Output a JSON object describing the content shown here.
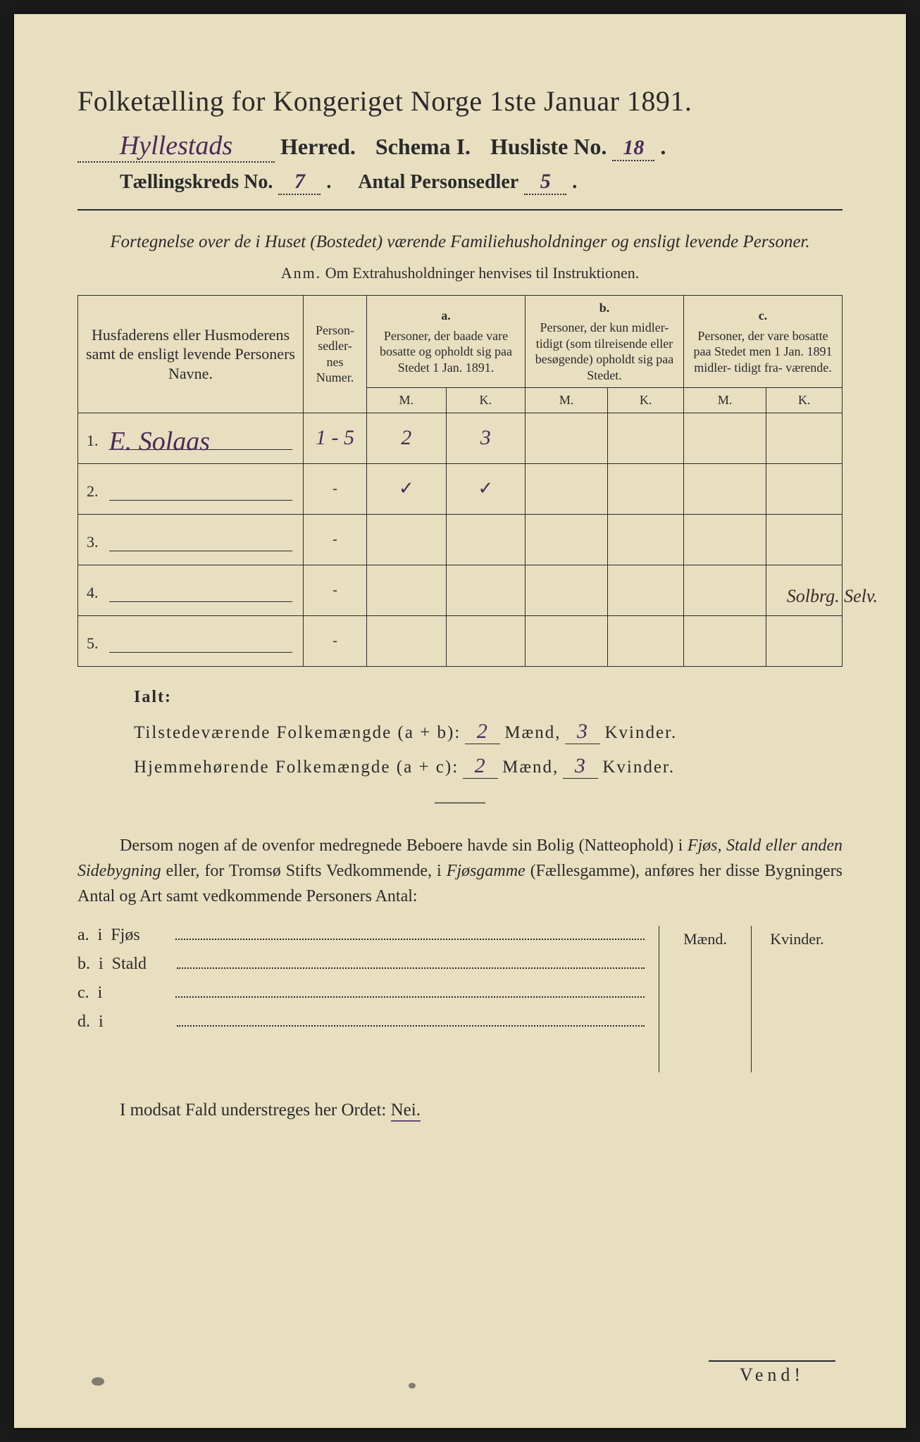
{
  "header": {
    "title": "Folketælling for Kongeriget Norge 1ste Januar 1891.",
    "herred_value": "Hyllestads",
    "herred_label": "Herred.",
    "schema_label": "Schema I.",
    "husliste_label": "Husliste No.",
    "husliste_value": "18",
    "kreds_label": "Tællingskreds No.",
    "kreds_value": "7",
    "personsedler_label": "Antal Personsedler",
    "personsedler_value": "5"
  },
  "description": {
    "main": "Fortegnelse over de i Huset (Bostedet) værende Familiehusholdninger og ensligt levende Personer.",
    "anm_lead": "Anm.",
    "anm_text": "Om Extrahusholdninger henvises til Instruktionen."
  },
  "table": {
    "col_name": "Husfaderens eller Husmoderens samt de ensligt levende Personers Navne.",
    "col_numer": "Person- sedler- nes Numer.",
    "col_a_label": "a.",
    "col_a_text": "Personer, der baade vare bosatte og opholdt sig paa Stedet 1 Jan. 1891.",
    "col_b_label": "b.",
    "col_b_text": "Personer, der kun midler- tidigt (som tilreisende eller besøgende) opholdt sig paa Stedet.",
    "col_c_label": "c.",
    "col_c_text": "Personer, der vare bosatte paa Stedet men 1 Jan. 1891 midler- tidigt fra- værende.",
    "mk_m": "M.",
    "mk_k": "K.",
    "rows": [
      {
        "num": "1.",
        "name": "E. Solaas",
        "numer": "1 - 5",
        "a_m": "2",
        "a_k": "3",
        "b_m": "",
        "b_k": "",
        "c_m": "",
        "c_k": ""
      },
      {
        "num": "2.",
        "name": "",
        "numer": "-",
        "a_m": "✓",
        "a_k": "✓",
        "b_m": "",
        "b_k": "",
        "c_m": "",
        "c_k": ""
      },
      {
        "num": "3.",
        "name": "",
        "numer": "-",
        "a_m": "",
        "a_k": "",
        "b_m": "",
        "b_k": "",
        "c_m": "",
        "c_k": ""
      },
      {
        "num": "4.",
        "name": "",
        "numer": "-",
        "a_m": "",
        "a_k": "",
        "b_m": "",
        "b_k": "",
        "c_m": "",
        "c_k": ""
      },
      {
        "num": "5.",
        "name": "",
        "numer": "-",
        "a_m": "",
        "a_k": "",
        "b_m": "",
        "b_k": "",
        "c_m": "",
        "c_k": ""
      }
    ],
    "margin_note": "Solbrg. Selv."
  },
  "totals": {
    "ialt_label": "Ialt:",
    "line1_label": "Tilstedeværende Folkemængde (a + b):",
    "line1_m": "2",
    "line1_k": "3",
    "line2_label": "Hjemmehørende Folkemængde (a + c):",
    "line2_m": "2",
    "line2_k": "3",
    "maend": "Mænd,",
    "kvinder": "Kvinder."
  },
  "paragraph": {
    "text_pre": "Dersom nogen af de ovenfor medregnede Beboere havde sin Bolig (Natteophold) i ",
    "em1": "Fjøs, Stald eller anden Sidebygning",
    "text_mid": " eller, for Tromsø Stifts Vedkommende, i ",
    "em2": "Fjøsgamme",
    "text_paren": " (Fællesgamme), anføres her disse Bygningers Antal og Art samt vedkommende Personers Antal:"
  },
  "buildings": {
    "maend": "Mænd.",
    "kvinder": "Kvinder.",
    "items": [
      {
        "label": "a.  i",
        "name": "Fjøs"
      },
      {
        "label": "b.  i",
        "name": "Stald"
      },
      {
        "label": "c.  i",
        "name": ""
      },
      {
        "label": "d.  i",
        "name": ""
      }
    ]
  },
  "final": {
    "text": "I modsat Fald understreges her Ordet: ",
    "nei": "Nei."
  },
  "vend": "Vend!",
  "colors": {
    "paper": "#e8dfc0",
    "ink": "#2a2a2a",
    "handwriting": "#4a2a5a",
    "background": "#1a1a1a"
  }
}
